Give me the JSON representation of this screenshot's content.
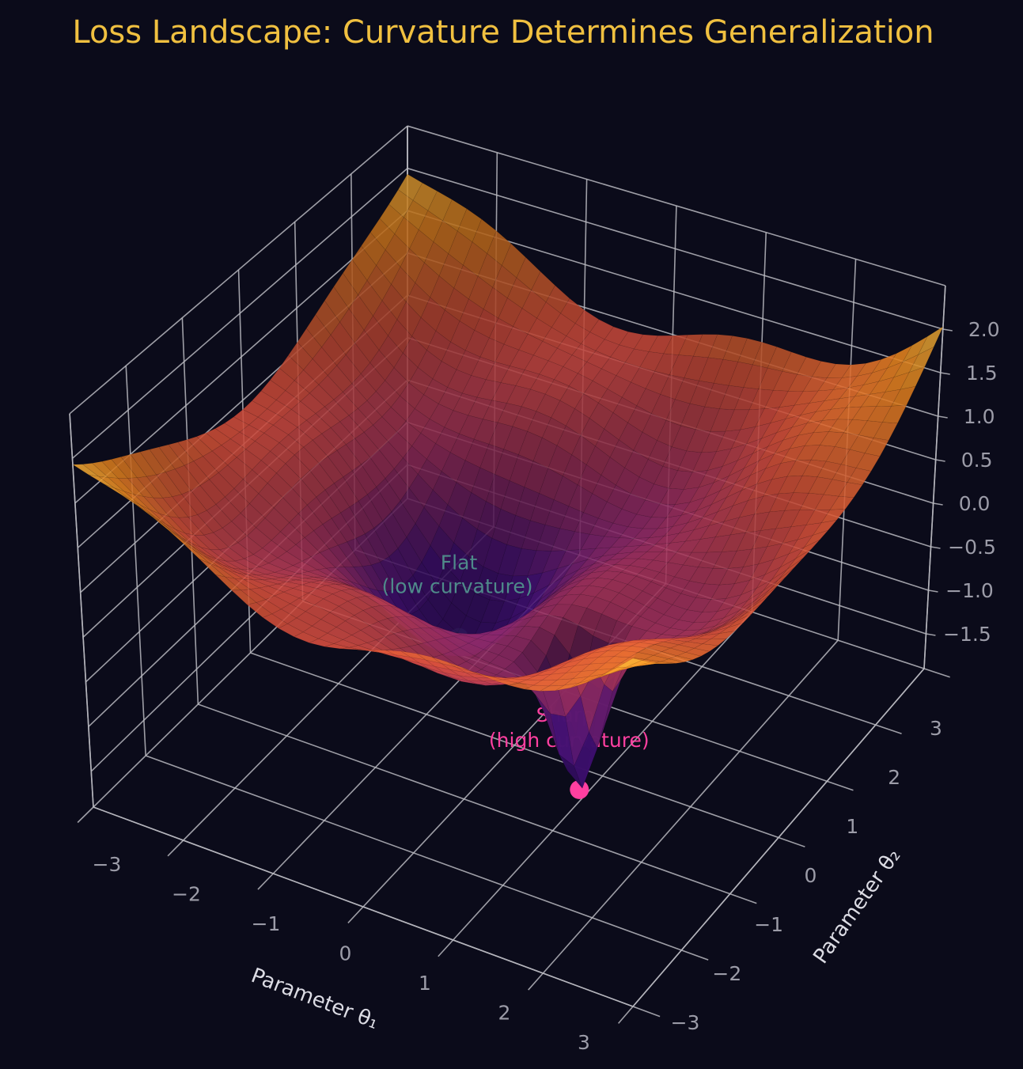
{
  "chart_data": {
    "type": "surface",
    "title": "Loss Landscape: Curvature Determines Generalization",
    "xlabel": "Parameter θ₁",
    "ylabel": "Parameter θ₂",
    "xticks": [
      "−3",
      "−2",
      "−1",
      "0",
      "1",
      "2",
      "3"
    ],
    "yticks": [
      "−3",
      "−2",
      "−1",
      "0",
      "1",
      "2",
      "3"
    ],
    "zticks": [
      "−1.5",
      "−1.0",
      "−0.5",
      "0.0",
      "0.5",
      "1.0",
      "1.5",
      "2.0"
    ],
    "xlim": [
      -3,
      3
    ],
    "ylim": [
      -3,
      3
    ],
    "zlim": [
      -1.9,
      2.5
    ],
    "colormap": "plasma",
    "grid": true,
    "annotations": [
      {
        "line1": "Flat",
        "line2": "(low curvature)",
        "color": "#2f6a6c"
      },
      {
        "line1": "Sharp",
        "line2": "(high curvature)",
        "color": "#ff3fa0"
      }
    ],
    "colors": {
      "background": "#0b0b1a",
      "title": "#f0c040",
      "grid": "#b8b8c0"
    }
  }
}
